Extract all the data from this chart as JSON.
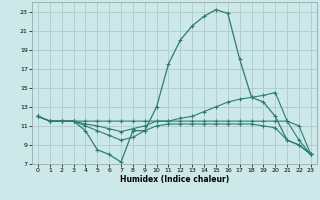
{
  "xlabel": "Humidex (Indice chaleur)",
  "background_color": "#cce8e8",
  "line_color": "#2d7d6e",
  "grid_color": "#aacccc",
  "xlim": [
    -0.5,
    23.5
  ],
  "ylim": [
    7,
    24
  ],
  "yticks": [
    7,
    9,
    11,
    13,
    15,
    17,
    19,
    21,
    23
  ],
  "xticks": [
    0,
    1,
    2,
    3,
    4,
    5,
    6,
    7,
    8,
    9,
    10,
    11,
    12,
    13,
    14,
    15,
    16,
    17,
    18,
    19,
    20,
    21,
    22,
    23
  ],
  "line1_x": [
    0,
    1,
    2,
    3,
    4,
    5,
    6,
    7,
    8,
    9,
    10,
    11,
    12,
    13,
    14,
    15,
    16,
    17,
    18,
    19,
    20,
    21,
    22,
    23
  ],
  "line1_y": [
    12.0,
    11.5,
    11.5,
    11.5,
    10.5,
    8.5,
    8.0,
    7.2,
    10.5,
    10.5,
    13.0,
    17.5,
    20.0,
    21.5,
    22.5,
    23.2,
    22.8,
    18.0,
    14.0,
    13.5,
    12.0,
    9.5,
    9.0,
    8.0
  ],
  "line2_x": [
    0,
    1,
    2,
    3,
    4,
    5,
    6,
    7,
    8,
    9,
    10,
    11,
    12,
    13,
    14,
    15,
    16,
    17,
    18,
    19,
    20,
    21,
    22,
    23
  ],
  "line2_y": [
    12.0,
    11.5,
    11.5,
    11.5,
    11.5,
    11.5,
    11.5,
    11.5,
    11.5,
    11.5,
    11.5,
    11.5,
    11.5,
    11.5,
    11.5,
    11.5,
    11.5,
    11.5,
    11.5,
    11.5,
    11.5,
    11.5,
    11.0,
    8.0
  ],
  "line3_x": [
    0,
    1,
    2,
    3,
    4,
    5,
    6,
    7,
    8,
    9,
    10,
    11,
    12,
    13,
    14,
    15,
    16,
    17,
    18,
    19,
    20,
    21,
    22,
    23
  ],
  "line3_y": [
    12.0,
    11.5,
    11.5,
    11.5,
    11.2,
    11.0,
    10.7,
    10.4,
    10.7,
    11.0,
    11.5,
    11.5,
    11.8,
    12.0,
    12.5,
    13.0,
    13.5,
    13.8,
    14.0,
    14.2,
    14.5,
    11.5,
    9.5,
    8.0
  ],
  "line4_x": [
    0,
    1,
    2,
    3,
    4,
    5,
    6,
    7,
    8,
    9,
    10,
    11,
    12,
    13,
    14,
    15,
    16,
    17,
    18,
    19,
    20,
    21,
    22,
    23
  ],
  "line4_y": [
    12.0,
    11.5,
    11.5,
    11.5,
    11.0,
    10.5,
    10.0,
    9.5,
    9.8,
    10.5,
    11.0,
    11.2,
    11.2,
    11.2,
    11.2,
    11.2,
    11.2,
    11.2,
    11.2,
    11.0,
    10.8,
    9.5,
    9.0,
    8.0
  ]
}
